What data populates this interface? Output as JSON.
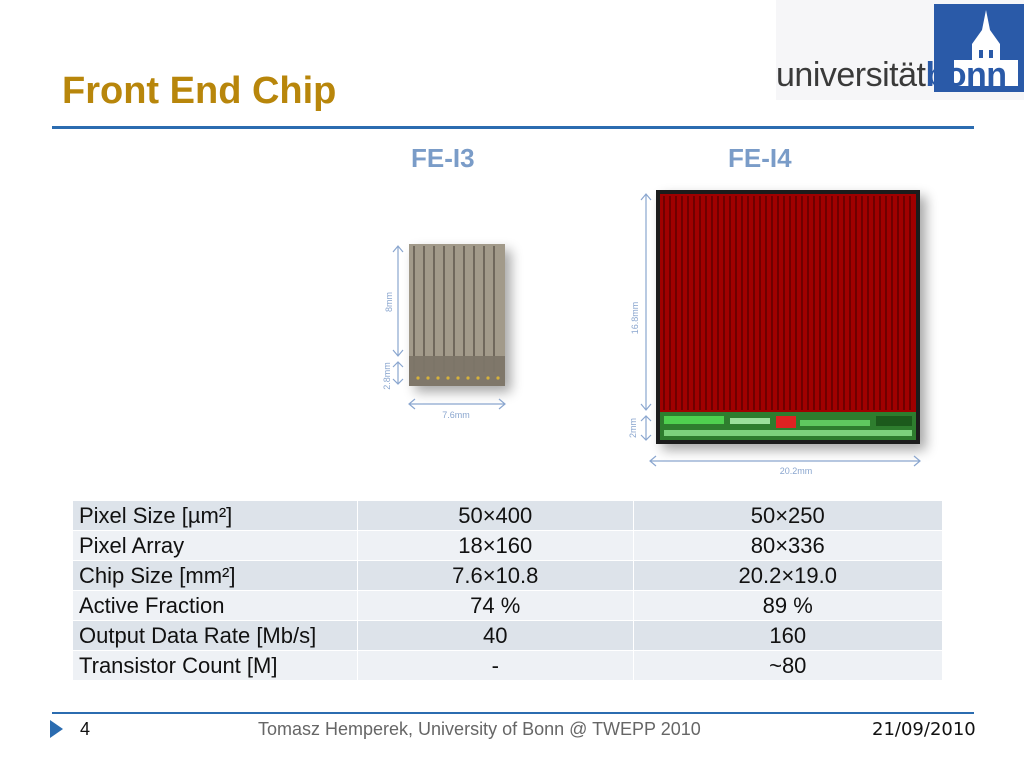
{
  "slide": {
    "title": "Front End Chip",
    "logo": {
      "text_regular": "universität",
      "text_bold": "bonn"
    }
  },
  "chips": {
    "fe_i3": {
      "label": "FE-I3",
      "dim_height": "8mm",
      "dim_periphery": "2.8mm",
      "dim_width": "7.6mm"
    },
    "fe_i4": {
      "label": "FE-I4",
      "dim_height": "16.8mm",
      "dim_periphery": "2mm",
      "dim_width": "20.2mm"
    }
  },
  "table": {
    "rows": [
      {
        "name": "Pixel Size [µm²]",
        "fe_i3": "50×400",
        "fe_i4": "50×250"
      },
      {
        "name": "Pixel Array",
        "fe_i3": "18×160",
        "fe_i4": "80×336"
      },
      {
        "name": "Chip Size [mm²]",
        "fe_i3": "7.6×10.8",
        "fe_i4": "20.2×19.0"
      },
      {
        "name": "Active Fraction",
        "fe_i3": "74 %",
        "fe_i4": "89 %"
      },
      {
        "name": "Output Data Rate [Mb/s]",
        "fe_i3": "40",
        "fe_i4": "160"
      },
      {
        "name": "Transistor Count [M]",
        "fe_i3": "-",
        "fe_i4": "~80"
      }
    ]
  },
  "footer": {
    "page_number": "4",
    "center_text": "Tomasz Hemperek, University of Bonn @ TWEPP 2010",
    "date": "21/09/2010"
  },
  "colors": {
    "title": "#b8860b",
    "accent": "#2b6cb0",
    "chip_label": "#7a9cc8",
    "fe_i4_pixels": "#a00000"
  },
  "icons": {
    "footer_arrow": "triangle-right-icon",
    "logo_building": "university-building-icon"
  }
}
